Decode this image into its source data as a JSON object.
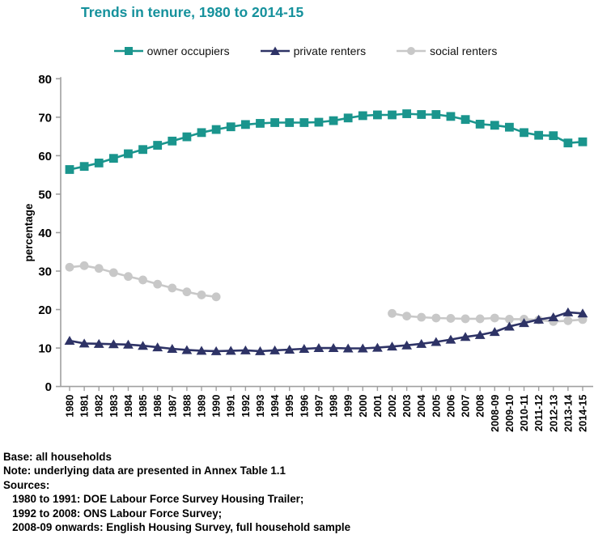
{
  "title": {
    "text": "Trends in tenure, 1980 to 2014-15"
  },
  "notes": {
    "lines": [
      "Base: all households",
      "Note: underlying data are presented in Annex Table 1.1",
      "Sources:",
      "   1980 to 1991: DOE Labour Force Survey Housing Trailer;",
      "   1992 to 2008: ONS Labour Force Survey;",
      "   2008-09 onwards: English Housing Survey, full household sample"
    ]
  },
  "chart_data": {
    "type": "line",
    "title": "Trends in tenure, 1980 to 2014-15",
    "title_color": "#15919c",
    "xlabel": "",
    "ylabel": "percentage",
    "ylim": [
      0,
      80
    ],
    "ytick_interval": 10,
    "grid": false,
    "legend_position": "top-center",
    "axis_color": "#a0a0a0",
    "label_color": "#000000",
    "categories": [
      "1980",
      "1981",
      "1982",
      "1983",
      "1984",
      "1985",
      "1986",
      "1987",
      "1988",
      "1989",
      "1990",
      "1991",
      "1992",
      "1993",
      "1994",
      "1995",
      "1996",
      "1997",
      "1998",
      "1999",
      "2000",
      "2001",
      "2002",
      "2003",
      "2004",
      "2005",
      "2006",
      "2007",
      "2008",
      "2008-09",
      "2009-10",
      "2010-11",
      "2011-12",
      "2012-13",
      "2013-14",
      "2014-15"
    ],
    "series": [
      {
        "name": "owner occupiers",
        "marker": "square",
        "color": "#1a958d",
        "values": [
          56.4,
          57.2,
          58.1,
          59.3,
          60.5,
          61.6,
          62.7,
          63.8,
          64.9,
          66.0,
          66.8,
          67.5,
          68.1,
          68.4,
          68.6,
          68.6,
          68.6,
          68.7,
          69.1,
          69.8,
          70.4,
          70.6,
          70.6,
          70.9,
          70.7,
          70.7,
          70.2,
          69.4,
          68.2,
          67.9,
          67.4,
          66.0,
          65.3,
          65.2,
          63.3,
          63.6
        ]
      },
      {
        "name": "private renters",
        "marker": "triangle",
        "color": "#2e3366",
        "values": [
          11.9,
          11.2,
          11.1,
          11.0,
          10.9,
          10.6,
          10.2,
          9.8,
          9.5,
          9.3,
          9.2,
          9.3,
          9.4,
          9.2,
          9.4,
          9.6,
          9.8,
          10.0,
          10.0,
          9.9,
          9.9,
          10.1,
          10.4,
          10.7,
          11.1,
          11.6,
          12.2,
          12.9,
          13.4,
          14.2,
          15.6,
          16.5,
          17.4,
          18.0,
          19.3,
          19.0
        ]
      },
      {
        "name": "social renters",
        "marker": "circle",
        "color": "#c8c8c8",
        "values": [
          31.0,
          31.4,
          30.7,
          29.6,
          28.6,
          27.7,
          26.6,
          25.6,
          24.6,
          23.8,
          23.3,
          null,
          null,
          null,
          null,
          null,
          null,
          null,
          null,
          null,
          null,
          null,
          19.0,
          18.3,
          18.0,
          17.8,
          17.7,
          17.6,
          17.6,
          17.8,
          17.5,
          17.5,
          17.3,
          16.9,
          17.1,
          17.4
        ]
      }
    ]
  }
}
